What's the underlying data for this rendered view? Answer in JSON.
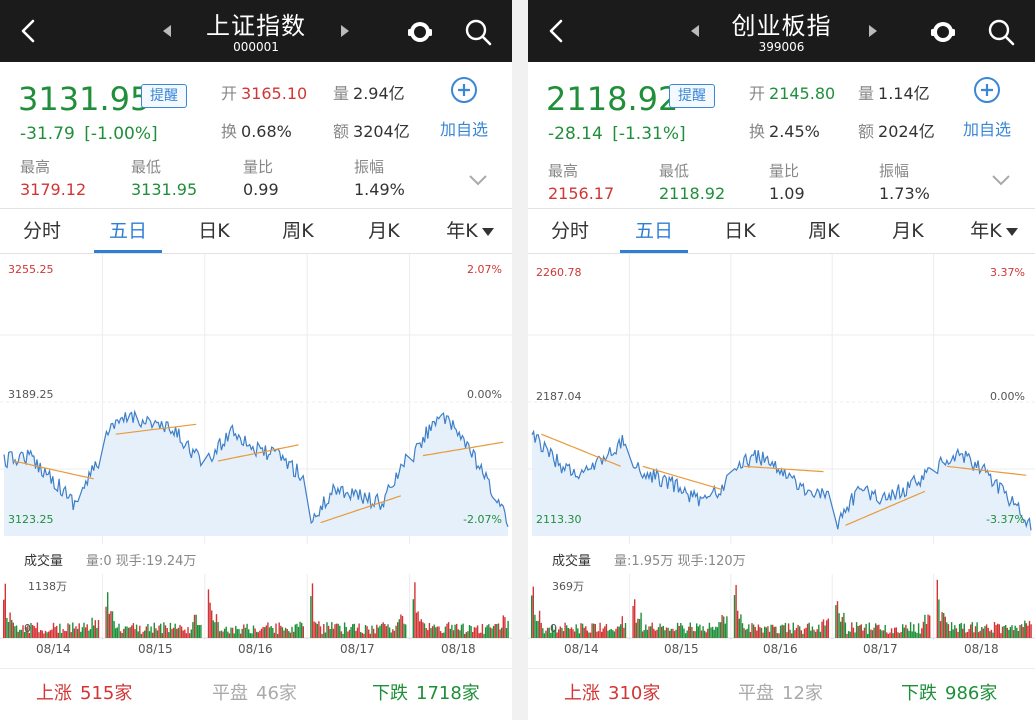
{
  "panels": [
    {
      "title": "上证指数",
      "code": "000001",
      "price": "3131.95",
      "remind_label": "提醒",
      "change": "-31.79  [-1.00%]",
      "open_label": "开",
      "open": "3165.10",
      "volume_label": "量",
      "volume": "2.94亿",
      "turnover_label": "换",
      "turnover": "0.68%",
      "amount_label": "额",
      "amount": "3204亿",
      "add_label": "加自选",
      "high_label": "最高",
      "high": "3179.12",
      "low_label": "最低",
      "low": "3131.95",
      "vr_label": "量比",
      "vr": "0.99",
      "amp_label": "振幅",
      "amp": "1.49%",
      "tabs": [
        "分时",
        "五日",
        "日K",
        "周K",
        "月K",
        "年K"
      ],
      "y_top": "3255.25",
      "y_mid": "3189.25",
      "y_bot": "3123.25",
      "p_top": "2.07%",
      "p_mid": "0.00%",
      "p_bot": "-2.07%",
      "vol_title": "成交量",
      "vol_info": "量:0 现手:19.24万",
      "vol_max": "1138万",
      "vol_zero": "0",
      "dates": [
        "08/14",
        "08/15",
        "08/16",
        "08/17",
        "08/18"
      ],
      "up_label": "上涨",
      "up": "515家",
      "flat_label": "平盘",
      "flat": "46家",
      "down_label": "下跌",
      "down": "1718家"
    },
    {
      "title": "创业板指",
      "code": "399006",
      "price": "2118.92",
      "remind_label": "提醒",
      "change": "-28.14  [-1.31%]",
      "open_label": "开",
      "open": "2145.80",
      "volume_label": "量",
      "volume": "1.14亿",
      "turnover_label": "换",
      "turnover": "2.45%",
      "amount_label": "额",
      "amount": "2024亿",
      "add_label": "加自选",
      "high_label": "最高",
      "high": "2156.17",
      "low_label": "最低",
      "low": "2118.92",
      "vr_label": "量比",
      "vr": "1.09",
      "amp_label": "振幅",
      "amp": "1.73%",
      "tabs": [
        "分时",
        "五日",
        "日K",
        "周K",
        "月K",
        "年K"
      ],
      "y_top": "2260.78",
      "y_mid": "2187.04",
      "y_bot": "2113.30",
      "p_top": "3.37%",
      "p_mid": "0.00%",
      "p_bot": "-3.37%",
      "vol_title": "成交量",
      "vol_info": "量:1.95万 现手:120万",
      "vol_max": "369万",
      "vol_zero": "0",
      "dates": [
        "08/14",
        "08/15",
        "08/16",
        "08/17",
        "08/18"
      ],
      "up_label": "上涨",
      "up": "310家",
      "flat_label": "平盘",
      "flat": "12家",
      "down_label": "下跌",
      "down": "986家"
    }
  ],
  "colors": {
    "up": "#d23535",
    "down": "#1f8f3a",
    "accent": "#2f7fd6",
    "line": "#3d7fc8",
    "avg": "#e89a3a",
    "fill": "#e6f0fa"
  },
  "icons": [
    "back-arrow-icon",
    "chevron-left-icon",
    "chevron-right-icon",
    "message-icon",
    "search-icon",
    "plus-circle-icon",
    "chevron-down-icon",
    "dropdown-triangle-icon"
  ]
}
